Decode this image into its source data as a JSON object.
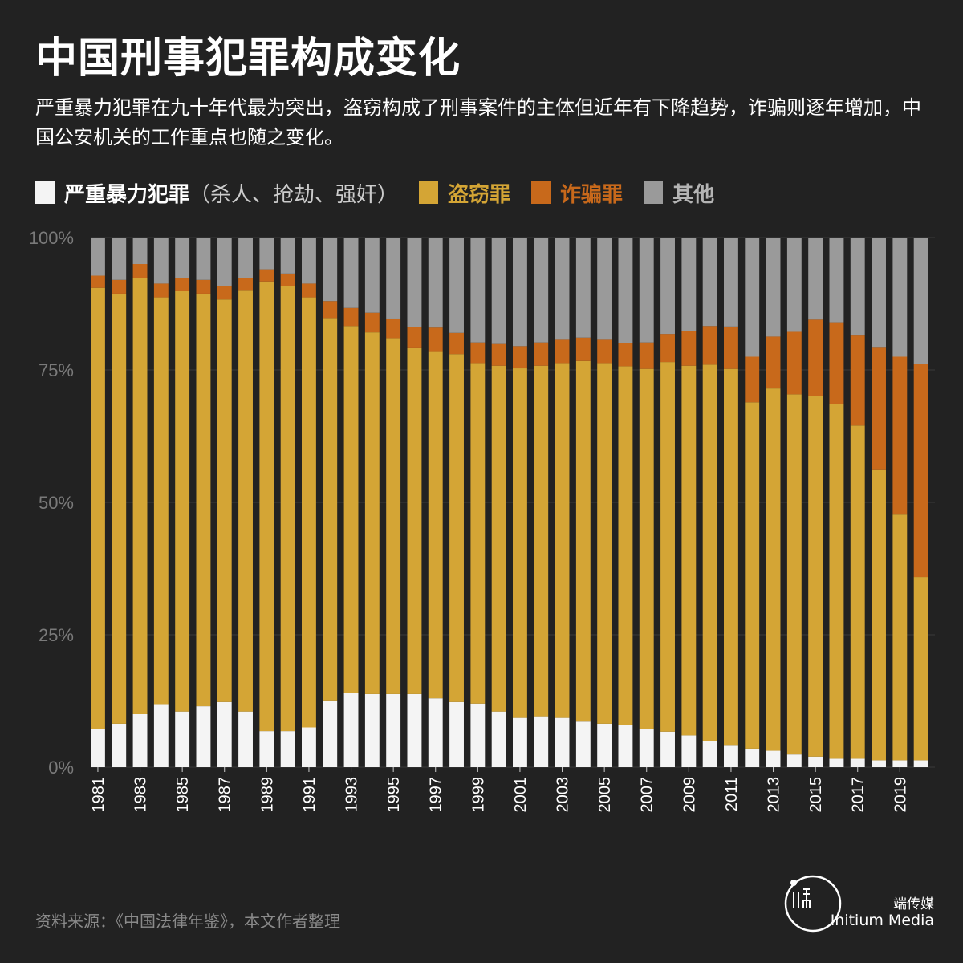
{
  "header": {
    "title": "中国刑事犯罪构成变化",
    "subtitle": "严重暴力犯罪在九十年代最为突出，盗窃构成了刑事案件的主体但近年有下降趋势，诈骗则逐年增加，中国公安机关的工作重点也随之变化。"
  },
  "legend": [
    {
      "label": "严重暴力犯罪",
      "note": "（杀人、抢劫、强奸）",
      "color": "#f4f4f4",
      "label_color": "#ffffff"
    },
    {
      "label": "盗窃罪",
      "note": "",
      "color": "#d4a535",
      "label_color": "#d4a535"
    },
    {
      "label": "诈骗罪",
      "note": "",
      "color": "#c8691b",
      "label_color": "#c8691b"
    },
    {
      "label": "其他",
      "note": "",
      "color": "#9a9a9a",
      "label_color": "#b4b4b4"
    }
  ],
  "footer": {
    "source": "资料来源：《中国法律年鉴》，本文作者整理",
    "brand_name": "端传媒",
    "brand_sub": "Initium Media"
  },
  "chart_data": {
    "type": "bar",
    "stacked": true,
    "grid": true,
    "x": [
      1981,
      1982,
      1983,
      1984,
      1985,
      1986,
      1987,
      1988,
      1989,
      1990,
      1991,
      1992,
      1993,
      1994,
      1995,
      1996,
      1997,
      1998,
      1999,
      2000,
      2001,
      2002,
      2003,
      2004,
      2005,
      2006,
      2007,
      2008,
      2009,
      2010,
      2011,
      2012,
      2013,
      2014,
      2015,
      2016,
      2017,
      2018,
      2019,
      2020
    ],
    "x_tick_labels": [
      "1981",
      "1983",
      "1985",
      "1987",
      "1989",
      "1991",
      "1993",
      "1995",
      "1997",
      "1999",
      "2001",
      "2003",
      "2005",
      "2007",
      "2009",
      "2011",
      "2013",
      "2015",
      "2017",
      "2019"
    ],
    "ylim": [
      0,
      100
    ],
    "y_ticks": [
      0,
      25,
      50,
      75,
      100
    ],
    "y_tick_labels": [
      "0%",
      "25%",
      "50%",
      "75%",
      "100%"
    ],
    "series": [
      {
        "name": "严重暴力犯罪",
        "color": "#f4f4f4",
        "values": [
          7.2,
          8.2,
          10.0,
          11.9,
          10.5,
          11.5,
          12.3,
          10.5,
          6.8,
          6.8,
          7.5,
          12.6,
          14.0,
          13.8,
          13.8,
          13.8,
          13.0,
          12.3,
          12.0,
          10.5,
          9.3,
          9.6,
          9.3,
          8.6,
          8.2,
          7.9,
          7.2,
          6.7,
          6.0,
          5.0,
          4.2,
          3.5,
          3.1,
          2.4,
          2.0,
          1.6,
          1.6,
          1.3,
          1.3,
          1.3
        ]
      },
      {
        "name": "盗窃罪",
        "color": "#d4a535",
        "values": [
          83.3,
          81.2,
          82.4,
          76.8,
          79.5,
          77.9,
          76.0,
          79.6,
          84.9,
          84.1,
          81.2,
          72.2,
          69.3,
          68.3,
          67.2,
          65.3,
          65.4,
          65.7,
          64.3,
          65.3,
          66.0,
          66.2,
          67.0,
          68.1,
          68.1,
          67.8,
          68.0,
          69.8,
          69.8,
          71.0,
          71.0,
          65.4,
          68.4,
          68.0,
          68.0,
          67.0,
          62.9,
          54.8,
          46.4,
          34.6
        ]
      },
      {
        "name": "诈骗罪",
        "color": "#c8691b",
        "values": [
          2.3,
          2.6,
          2.6,
          2.6,
          2.3,
          2.6,
          2.6,
          2.3,
          2.3,
          2.3,
          2.6,
          3.2,
          3.4,
          3.7,
          3.7,
          4.0,
          4.6,
          4.0,
          3.9,
          4.1,
          4.2,
          4.4,
          4.4,
          4.4,
          4.4,
          4.3,
          5.0,
          5.3,
          6.5,
          7.3,
          8.0,
          8.6,
          9.8,
          11.8,
          14.5,
          15.4,
          17.0,
          23.1,
          29.8,
          40.2
        ]
      },
      {
        "name": "其他",
        "color": "#9a9a9a",
        "values": [
          7.2,
          8.0,
          5.0,
          8.7,
          7.7,
          8.0,
          9.1,
          7.6,
          6.0,
          6.8,
          8.7,
          12.0,
          13.3,
          14.2,
          15.3,
          16.9,
          17.0,
          18.0,
          19.8,
          20.1,
          20.5,
          19.8,
          19.3,
          18.9,
          19.3,
          20.0,
          19.8,
          18.2,
          17.7,
          16.7,
          16.8,
          22.5,
          18.7,
          17.8,
          15.5,
          16.0,
          18.5,
          20.8,
          22.5,
          23.9
        ]
      }
    ]
  }
}
